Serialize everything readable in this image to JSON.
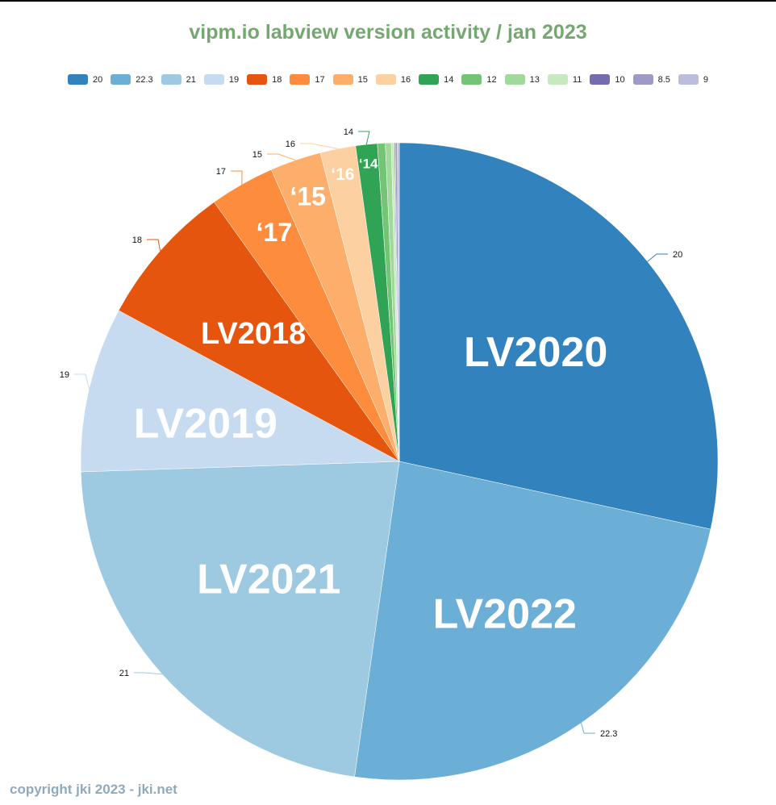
{
  "title": "vipm.io labview version activity / jan 2023",
  "footer": {
    "copyright": "copyright jki 2023 - jki.net"
  },
  "legend": [
    {
      "label": "20",
      "color": "#3182bd"
    },
    {
      "label": "22.3",
      "color": "#6baed6"
    },
    {
      "label": "21",
      "color": "#9ecae1"
    },
    {
      "label": "19",
      "color": "#c6dbef"
    },
    {
      "label": "18",
      "color": "#e6550d"
    },
    {
      "label": "17",
      "color": "#fd8d3c"
    },
    {
      "label": "15",
      "color": "#fdae6b"
    },
    {
      "label": "16",
      "color": "#fdd0a2"
    },
    {
      "label": "14",
      "color": "#31a354"
    },
    {
      "label": "12",
      "color": "#74c476"
    },
    {
      "label": "13",
      "color": "#a1d99b"
    },
    {
      "label": "11",
      "color": "#c7e9c0"
    },
    {
      "label": "10",
      "color": "#756bb1"
    },
    {
      "label": "8.5",
      "color": "#9e9ac8"
    },
    {
      "label": "9",
      "color": "#bcbddc"
    }
  ],
  "chart_data": {
    "type": "pie",
    "title": "vipm.io labview version activity / jan 2023",
    "legend_position": "top",
    "start_angle_deg": 0,
    "direction": "clockwise",
    "categories": [
      "20",
      "22.3",
      "21",
      "19",
      "18",
      "17",
      "15",
      "16",
      "14",
      "12",
      "13",
      "11",
      "10",
      "8.5",
      "9"
    ],
    "values": [
      28.5,
      23.9,
      22.3,
      8.4,
      7.3,
      3.3,
      2.6,
      1.8,
      1.1,
      0.4,
      0.3,
      0.15,
      0.05,
      0.1,
      0.1
    ],
    "value_unit": "percent (estimated from slice angles)",
    "slice_labels": [
      "LV2020",
      "LV2022",
      "LV2021",
      "LV2019",
      "LV2018",
      "‘17",
      "‘15",
      "‘16",
      "‘14",
      "",
      "",
      "",
      "",
      "",
      ""
    ],
    "outer_labels": [
      "20",
      "22.3",
      "21",
      "19",
      "18",
      "17",
      "15",
      "16",
      "14",
      "",
      "",
      "",
      "",
      "",
      ""
    ]
  }
}
